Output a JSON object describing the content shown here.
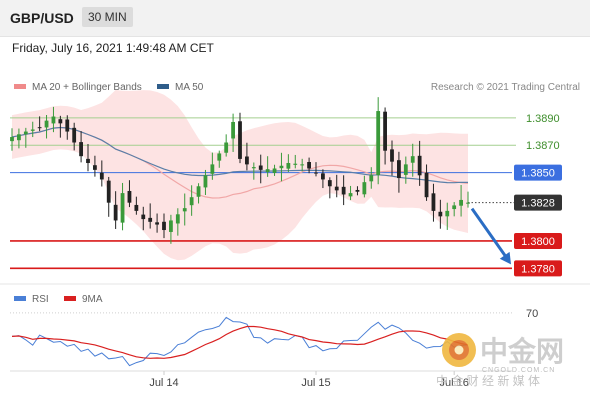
{
  "header": {
    "symbol": "GBP/USD",
    "timeframe": "30 MIN",
    "datetime": "Friday, July 16, 2021 1:49:48 AM CET"
  },
  "legend": {
    "items": [
      {
        "label": "MA 20 + Bollinger Bands",
        "color": "#f08a8a"
      },
      {
        "label": "MA 50",
        "color": "#2f5d8a"
      }
    ],
    "source": "Research © 2021 Trading Central"
  },
  "colors": {
    "band": "#fde3e3",
    "ma20": "#f1a7a7",
    "ma50": "#5a7fa8",
    "candle_up": "#3a9a3a",
    "candle_down": "#222222",
    "resistance": "#a4cf8f",
    "resistance_text": "#3e8e2c",
    "pivot": "#3b6fe0",
    "support": "#d91a1a",
    "arrow": "#2a6dc4",
    "last_badge": "#333333",
    "rsi": "#4a7fd6",
    "rsi_ma": "#d92020"
  },
  "chart_data": [
    {
      "type": "candlestick",
      "title": "GBP/USD",
      "timeframe": "30 MIN",
      "x_ticks": [
        "Jul 14",
        "Jul 15",
        "Jul 16"
      ],
      "ylim": [
        1.377,
        1.3906
      ],
      "close_path": [
        [
          0,
          1.3876
        ],
        [
          2,
          1.388
        ],
        [
          4,
          1.3883
        ],
        [
          5,
          1.3888
        ],
        [
          6,
          1.3891
        ],
        [
          7,
          1.3886
        ],
        [
          8,
          1.388
        ],
        [
          9,
          1.3872
        ],
        [
          10,
          1.3862
        ],
        [
          12,
          1.3852
        ],
        [
          13,
          1.3845
        ],
        [
          14,
          1.3828
        ],
        [
          15,
          1.3815
        ],
        [
          16,
          1.3835
        ],
        [
          17,
          1.3828
        ],
        [
          18,
          1.3822
        ],
        [
          19,
          1.3816
        ],
        [
          21,
          1.3812
        ],
        [
          22,
          1.3808
        ],
        [
          23,
          1.3815
        ],
        [
          25,
          1.3824
        ],
        [
          27,
          1.384
        ],
        [
          28,
          1.3848
        ],
        [
          30,
          1.3864
        ],
        [
          31,
          1.3872
        ],
        [
          32,
          1.3887
        ],
        [
          33,
          1.386
        ],
        [
          34,
          1.3856
        ],
        [
          36,
          1.3852
        ],
        [
          38,
          1.3853
        ],
        [
          40,
          1.3857
        ],
        [
          42,
          1.3856
        ],
        [
          44,
          1.385
        ],
        [
          46,
          1.384
        ],
        [
          48,
          1.3834
        ],
        [
          50,
          1.3836
        ],
        [
          51,
          1.3843
        ],
        [
          52,
          1.3848
        ],
        [
          53,
          1.3895
        ],
        [
          54,
          1.3866
        ],
        [
          55,
          1.3858
        ],
        [
          56,
          1.3846
        ],
        [
          57,
          1.3856
        ],
        [
          58,
          1.3862
        ],
        [
          59,
          1.3848
        ],
        [
          60,
          1.3832
        ],
        [
          61,
          1.3822
        ],
        [
          62,
          1.3818
        ],
        [
          64,
          1.3826
        ],
        [
          65,
          1.383
        ],
        [
          66,
          1.3828
        ]
      ],
      "candles_count": 67,
      "indicators": [
        "MA 20 + Bollinger Bands",
        "MA 50"
      ],
      "levels": [
        {
          "label": "1.3890",
          "value": 1.389,
          "kind": "resistance"
        },
        {
          "label": "1.3870",
          "value": 1.387,
          "kind": "resistance"
        },
        {
          "label": "1.3850",
          "value": 1.385,
          "kind": "pivot"
        },
        {
          "label": "1.3828",
          "value": 1.3828,
          "kind": "last"
        },
        {
          "label": "1.3800",
          "value": 1.38,
          "kind": "support"
        },
        {
          "label": "1.3780",
          "value": 1.378,
          "kind": "support"
        }
      ],
      "forecast_target": 1.378
    },
    {
      "type": "line",
      "legend": [
        "RSI",
        "9MA"
      ],
      "ylim": [
        30,
        75
      ],
      "levels": [
        {
          "label": "70",
          "value": 70
        }
      ],
      "rsi_path": [
        [
          0,
          55
        ],
        [
          3,
          50
        ],
        [
          6,
          52
        ],
        [
          8,
          48
        ],
        [
          10,
          44
        ],
        [
          12,
          40
        ],
        [
          14,
          36
        ],
        [
          15,
          38
        ],
        [
          17,
          34
        ],
        [
          19,
          36
        ],
        [
          21,
          40
        ],
        [
          23,
          44
        ],
        [
          25,
          50
        ],
        [
          27,
          56
        ],
        [
          29,
          62
        ],
        [
          31,
          65
        ],
        [
          33,
          63
        ],
        [
          35,
          55
        ],
        [
          37,
          50
        ],
        [
          39,
          54
        ],
        [
          41,
          52
        ],
        [
          43,
          48
        ],
        [
          45,
          44
        ],
        [
          47,
          46
        ],
        [
          49,
          50
        ],
        [
          51,
          54
        ],
        [
          53,
          60
        ],
        [
          55,
          58
        ],
        [
          57,
          56
        ],
        [
          59,
          50
        ],
        [
          61,
          44
        ],
        [
          63,
          46
        ],
        [
          66,
          48
        ]
      ],
      "ma_period": 9
    }
  ],
  "watermark": {
    "brand": "中金网",
    "domain": "CNGOLD.COM.CN",
    "tagline": "中 金 财 经 新 媒 体"
  }
}
